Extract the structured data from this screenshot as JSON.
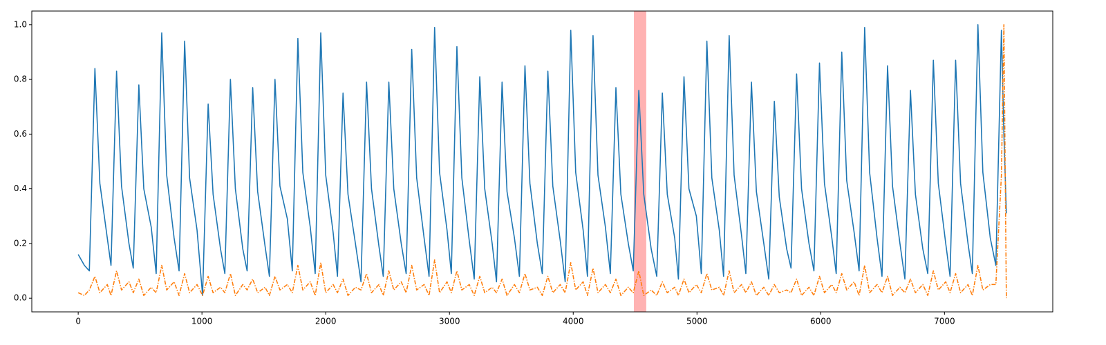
{
  "chart_data": {
    "type": "line",
    "x": [
      0,
      50,
      90,
      135,
      175,
      235,
      265,
      310,
      350,
      410,
      445,
      490,
      530,
      590,
      630,
      675,
      715,
      775,
      815,
      860,
      900,
      960,
      1005,
      1050,
      1090,
      1150,
      1185,
      1230,
      1270,
      1330,
      1365,
      1410,
      1450,
      1510,
      1545,
      1590,
      1630,
      1690,
      1730,
      1775,
      1815,
      1875,
      1915,
      1960,
      2000,
      2060,
      2095,
      2140,
      2180,
      2240,
      2285,
      2330,
      2370,
      2430,
      2465,
      2510,
      2550,
      2610,
      2650,
      2695,
      2735,
      2795,
      2835,
      2880,
      2920,
      2980,
      3015,
      3060,
      3100,
      3160,
      3200,
      3245,
      3285,
      3345,
      3380,
      3425,
      3465,
      3525,
      3565,
      3610,
      3650,
      3710,
      3750,
      3795,
      3835,
      3895,
      3935,
      3980,
      4020,
      4080,
      4115,
      4160,
      4200,
      4260,
      4300,
      4345,
      4385,
      4445,
      4485,
      4530,
      4570,
      4630,
      4675,
      4720,
      4760,
      4820,
      4850,
      4895,
      4935,
      4995,
      5035,
      5080,
      5120,
      5180,
      5215,
      5260,
      5300,
      5360,
      5395,
      5440,
      5480,
      5540,
      5580,
      5625,
      5665,
      5725,
      5760,
      5805,
      5845,
      5905,
      5945,
      5990,
      6030,
      6090,
      6125,
      6170,
      6210,
      6270,
      6310,
      6355,
      6395,
      6455,
      6495,
      6540,
      6580,
      6640,
      6680,
      6725,
      6765,
      6825,
      6865,
      6910,
      6950,
      7010,
      7045,
      7090,
      7130,
      7190,
      7225,
      7270,
      7310,
      7370,
      7415,
      7460,
      7480,
      7500
    ],
    "series": [
      {
        "color": "#1f77b4",
        "style": "solid",
        "values": [
          0.16,
          0.12,
          0.1,
          0.84,
          0.42,
          0.22,
          0.12,
          0.83,
          0.41,
          0.2,
          0.11,
          0.78,
          0.4,
          0.26,
          0.09,
          0.97,
          0.45,
          0.22,
          0.1,
          0.94,
          0.44,
          0.25,
          0.01,
          0.71,
          0.38,
          0.18,
          0.09,
          0.8,
          0.4,
          0.18,
          0.1,
          0.77,
          0.39,
          0.19,
          0.08,
          0.8,
          0.41,
          0.29,
          0.1,
          0.95,
          0.46,
          0.26,
          0.09,
          0.97,
          0.45,
          0.24,
          0.08,
          0.75,
          0.38,
          0.2,
          0.06,
          0.79,
          0.4,
          0.19,
          0.08,
          0.79,
          0.4,
          0.2,
          0.09,
          0.91,
          0.44,
          0.22,
          0.08,
          0.99,
          0.46,
          0.25,
          0.09,
          0.92,
          0.44,
          0.21,
          0.07,
          0.81,
          0.4,
          0.2,
          0.06,
          0.79,
          0.39,
          0.22,
          0.08,
          0.85,
          0.42,
          0.2,
          0.09,
          0.83,
          0.41,
          0.21,
          0.06,
          0.98,
          0.46,
          0.25,
          0.08,
          0.96,
          0.45,
          0.26,
          0.09,
          0.77,
          0.38,
          0.2,
          0.1,
          0.76,
          0.38,
          0.18,
          0.08,
          0.75,
          0.38,
          0.22,
          0.07,
          0.81,
          0.4,
          0.3,
          0.09,
          0.94,
          0.44,
          0.25,
          0.08,
          0.96,
          0.45,
          0.23,
          0.09,
          0.79,
          0.39,
          0.2,
          0.07,
          0.72,
          0.37,
          0.18,
          0.11,
          0.82,
          0.4,
          0.2,
          0.1,
          0.86,
          0.42,
          0.22,
          0.09,
          0.9,
          0.43,
          0.24,
          0.1,
          0.99,
          0.46,
          0.22,
          0.08,
          0.85,
          0.41,
          0.2,
          0.07,
          0.76,
          0.38,
          0.18,
          0.09,
          0.87,
          0.42,
          0.2,
          0.08,
          0.87,
          0.42,
          0.2,
          0.09,
          1.0,
          0.46,
          0.22,
          0.12,
          0.98,
          0.6,
          0.31
        ]
      },
      {
        "color": "#ff7f0e",
        "style": "dashdot",
        "values": [
          0.02,
          0.01,
          0.03,
          0.08,
          0.02,
          0.05,
          0.01,
          0.1,
          0.03,
          0.06,
          0.02,
          0.07,
          0.01,
          0.04,
          0.02,
          0.12,
          0.03,
          0.06,
          0.01,
          0.09,
          0.02,
          0.05,
          0.01,
          0.08,
          0.02,
          0.04,
          0.02,
          0.09,
          0.01,
          0.05,
          0.03,
          0.07,
          0.02,
          0.04,
          0.01,
          0.08,
          0.03,
          0.05,
          0.02,
          0.12,
          0.03,
          0.06,
          0.01,
          0.13,
          0.02,
          0.05,
          0.02,
          0.07,
          0.01,
          0.04,
          0.03,
          0.09,
          0.02,
          0.05,
          0.01,
          0.1,
          0.03,
          0.06,
          0.02,
          0.12,
          0.03,
          0.05,
          0.01,
          0.14,
          0.02,
          0.06,
          0.02,
          0.1,
          0.03,
          0.05,
          0.01,
          0.08,
          0.02,
          0.04,
          0.02,
          0.07,
          0.01,
          0.05,
          0.02,
          0.09,
          0.03,
          0.04,
          0.01,
          0.08,
          0.02,
          0.05,
          0.02,
          0.13,
          0.03,
          0.06,
          0.01,
          0.11,
          0.02,
          0.05,
          0.02,
          0.07,
          0.01,
          0.04,
          0.02,
          0.1,
          0.01,
          0.03,
          0.01,
          0.06,
          0.02,
          0.04,
          0.01,
          0.07,
          0.02,
          0.05,
          0.02,
          0.09,
          0.03,
          0.04,
          0.01,
          0.1,
          0.02,
          0.05,
          0.02,
          0.06,
          0.01,
          0.04,
          0.01,
          0.05,
          0.02,
          0.03,
          0.02,
          0.07,
          0.01,
          0.04,
          0.01,
          0.08,
          0.02,
          0.05,
          0.02,
          0.09,
          0.03,
          0.06,
          0.01,
          0.12,
          0.02,
          0.05,
          0.02,
          0.08,
          0.01,
          0.04,
          0.02,
          0.07,
          0.02,
          0.05,
          0.01,
          0.1,
          0.03,
          0.06,
          0.02,
          0.09,
          0.02,
          0.05,
          0.01,
          0.12,
          0.03,
          0.05,
          0.05,
          0.45,
          1.0,
          0.0
        ]
      }
    ],
    "highlight": {
      "xmin": 4490,
      "xmax": 4590,
      "color": "#ff0000"
    },
    "xlim": [
      -375,
      7875
    ],
    "ylim": [
      -0.05,
      1.05
    ],
    "xticks": [
      0,
      1000,
      2000,
      3000,
      4000,
      5000,
      6000,
      7000
    ],
    "yticks": [
      {
        "value": 0,
        "label": "0.0"
      },
      {
        "value": 0.2,
        "label": "0.2"
      },
      {
        "value": 0.4,
        "label": "0.4"
      },
      {
        "value": 0.6,
        "label": "0.6"
      },
      {
        "value": 0.8,
        "label": "0.8"
      },
      {
        "value": 1,
        "label": "1.0"
      }
    ]
  }
}
